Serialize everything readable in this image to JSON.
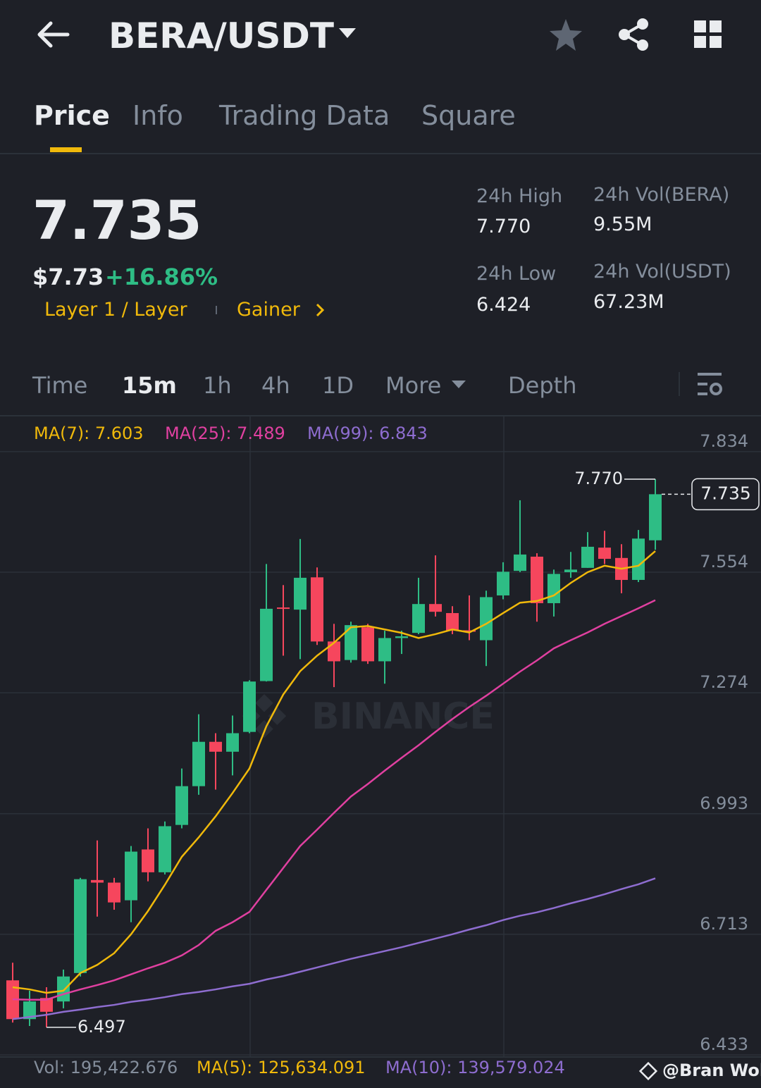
{
  "header": {
    "pair": "BERA/USDT"
  },
  "tabs": [
    "Price",
    "Info",
    "Trading Data",
    "Square"
  ],
  "ticker": {
    "last": "7.735",
    "usd": "$7.73",
    "change": "+16.86%",
    "tag1": "Layer 1 / Layer",
    "tag2": "Gainer",
    "stats": [
      {
        "label": "24h High",
        "value": "7.770"
      },
      {
        "label": "24h Vol(BERA)",
        "value": "9.55M"
      },
      {
        "label": "24h Low",
        "value": "6.424"
      },
      {
        "label": "24h Vol(USDT)",
        "value": "67.23M"
      }
    ]
  },
  "intervals": [
    "Time",
    "15m",
    "1h",
    "4h",
    "1D",
    "More",
    "Depth"
  ],
  "volume_bar": {
    "vol": "Vol: 195,422.676",
    "ma5": "MA(5): 125,634.091",
    "ma10": "MA(10): 139,579.024"
  },
  "watermark": "BINANCE",
  "credit": "@Bran Wolf",
  "chart_data": {
    "type": "candlestick",
    "up_color": "#2ebd85",
    "down_color": "#f6465d",
    "open": [
      6.606,
      6.516,
      6.565,
      6.557,
      6.623,
      6.839,
      6.833,
      6.792,
      6.91,
      6.857,
      6.967,
      7.057,
      7.16,
      7.137,
      7.183,
      7.301,
      7.472,
      7.467,
      7.542,
      7.393,
      7.35,
      7.426,
      7.347,
      7.401,
      7.413,
      7.48,
      7.459,
      7.419,
      7.396,
      7.5,
      7.557,
      7.59,
      7.482,
      7.554,
      7.564,
      7.611,
      7.587,
      7.536,
      7.628
    ],
    "high": [
      6.647,
      6.582,
      6.59,
      6.631,
      6.844,
      6.931,
      6.844,
      6.918,
      6.959,
      6.975,
      7.098,
      7.224,
      7.18,
      7.221,
      7.303,
      7.573,
      7.524,
      7.631,
      7.565,
      7.434,
      7.439,
      7.434,
      7.418,
      7.418,
      7.541,
      7.593,
      7.475,
      7.5,
      7.511,
      7.577,
      7.721,
      7.598,
      7.56,
      7.601,
      7.647,
      7.65,
      7.619,
      7.652,
      7.77
    ],
    "low": [
      6.508,
      6.5,
      6.497,
      6.541,
      6.615,
      6.754,
      6.77,
      6.741,
      6.836,
      6.852,
      6.959,
      7.037,
      7.049,
      7.082,
      7.18,
      7.3,
      7.36,
      7.352,
      7.385,
      7.287,
      7.344,
      7.341,
      7.295,
      7.364,
      7.41,
      7.451,
      7.41,
      7.396,
      7.336,
      7.491,
      7.554,
      7.439,
      7.451,
      7.541,
      7.564,
      7.573,
      7.505,
      7.531,
      7.606
    ],
    "close": [
      6.516,
      6.557,
      6.533,
      6.615,
      6.841,
      6.833,
      6.787,
      6.905,
      6.857,
      6.964,
      7.057,
      7.16,
      7.137,
      7.18,
      7.3,
      7.469,
      7.469,
      7.541,
      7.393,
      7.347,
      7.431,
      7.347,
      7.401,
      7.405,
      7.48,
      7.462,
      7.419,
      7.416,
      7.496,
      7.555,
      7.595,
      7.482,
      7.55,
      7.56,
      7.613,
      7.585,
      7.536,
      7.632,
      7.735
    ],
    "overlays": [
      {
        "label": "MA(7): 7.603",
        "color": "#f0b90b",
        "values": [
          6.59,
          6.585,
          6.577,
          6.582,
          6.623,
          6.642,
          6.669,
          6.713,
          6.767,
          6.828,
          6.893,
          6.938,
          6.987,
          7.041,
          7.098,
          7.196,
          7.27,
          7.324,
          7.36,
          7.39,
          7.426,
          7.429,
          7.421,
          7.413,
          7.401,
          7.41,
          7.421,
          7.414,
          7.434,
          7.459,
          7.483,
          7.487,
          7.5,
          7.529,
          7.554,
          7.569,
          7.562,
          7.569,
          7.603
        ]
      },
      {
        "label": "MA(25): 7.489",
        "color": "#e040a0",
        "values": [
          6.562,
          6.561,
          6.561,
          6.574,
          6.585,
          6.595,
          6.606,
          6.62,
          6.634,
          6.647,
          6.664,
          6.688,
          6.721,
          6.741,
          6.765,
          6.816,
          6.867,
          6.918,
          6.956,
          6.995,
          7.033,
          7.062,
          7.093,
          7.123,
          7.152,
          7.183,
          7.213,
          7.241,
          7.267,
          7.295,
          7.323,
          7.349,
          7.377,
          7.396,
          7.414,
          7.434,
          7.452,
          7.47,
          7.489
        ]
      },
      {
        "label": "MA(99): 6.843",
        "color": "#8e6dd0",
        "values": [
          6.516,
          6.521,
          6.526,
          6.533,
          6.538,
          6.544,
          6.549,
          6.556,
          6.561,
          6.567,
          6.574,
          6.579,
          6.585,
          6.592,
          6.598,
          6.608,
          6.616,
          6.626,
          6.636,
          6.646,
          6.656,
          6.665,
          6.674,
          6.683,
          6.693,
          6.703,
          6.713,
          6.724,
          6.734,
          6.746,
          6.756,
          6.764,
          6.774,
          6.785,
          6.795,
          6.806,
          6.818,
          6.829,
          6.843
        ]
      }
    ],
    "high_marker": {
      "value": 7.77,
      "label": "7.770"
    },
    "low_marker": {
      "value": 6.497,
      "label": "6.497"
    },
    "last_price": {
      "value": 7.735,
      "label": "7.735"
    },
    "ylim": [
      6.428,
      7.914
    ],
    "yticks": [
      7.834,
      7.554,
      7.274,
      6.993,
      6.713,
      6.433
    ],
    "grid": true
  }
}
